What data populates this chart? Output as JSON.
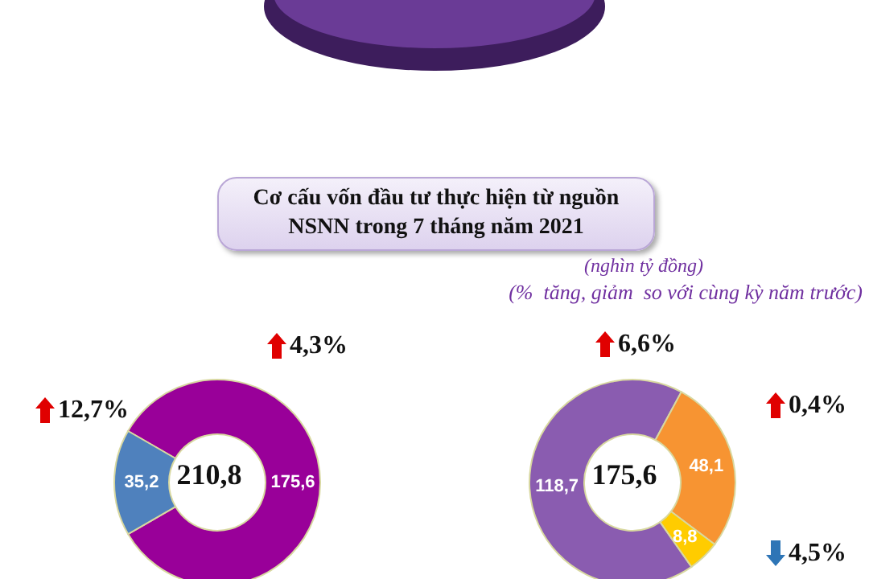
{
  "chart_data": [
    {
      "type": "donut",
      "title": "Cơ cấu vốn đầu tư thực hiện từ nguồn NSNN trong 7 tháng năm 2021",
      "categories": [
        null,
        null
      ],
      "values": [
        175.6,
        35.2
      ],
      "colors": [
        "#990099",
        "#4f81bd"
      ],
      "value_labels": [
        "175,6",
        "35,2"
      ],
      "annotations": [
        "210,8",
        "4,3%",
        "12,7%"
      ]
    },
    {
      "type": "donut",
      "subtitle": "(nghìn tỷ đồng)",
      "categories": [
        null,
        null,
        null
      ],
      "values": [
        118.7,
        48.1,
        8.8
      ],
      "colors": [
        "#8a5cb0",
        "#f79432",
        "#ffcc00"
      ],
      "value_labels": [
        "118,7",
        "48,1",
        "8,8"
      ],
      "annotations": [
        "(%  tăng, giảm  so với cùng kỳ năm trước)",
        "175,6",
        "6,6%",
        "0,4%",
        "4,5%"
      ]
    }
  ]
}
